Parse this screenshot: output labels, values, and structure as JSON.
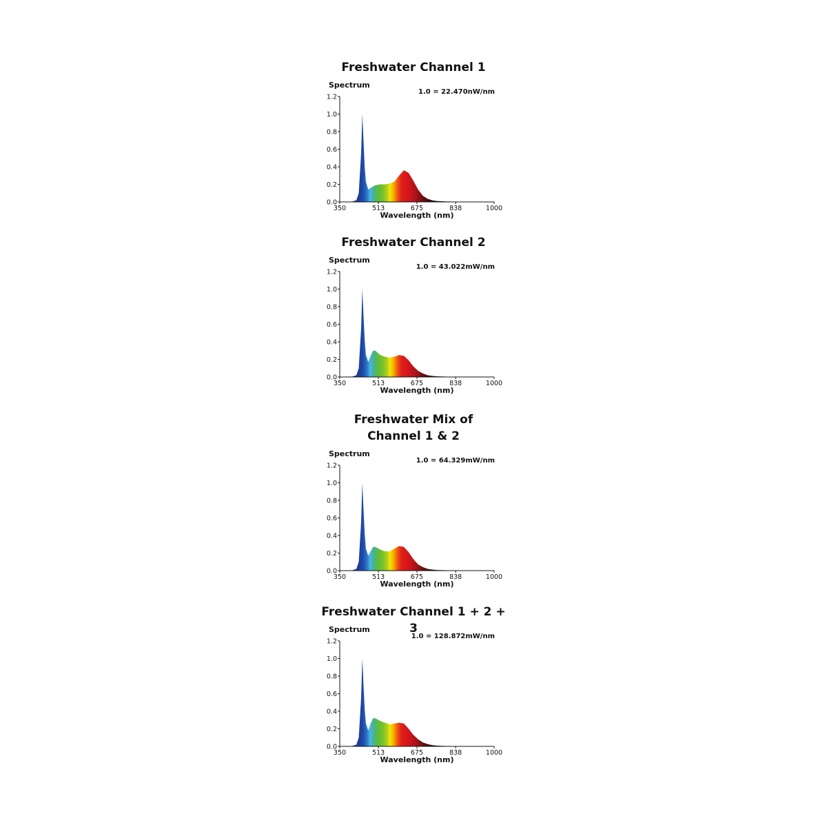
{
  "chart_data": [
    {
      "type": "area",
      "title_lines": [
        "Freshwater Channel 1"
      ],
      "ylabel": "Spectrum",
      "xlabel": "Wavelength (nm)",
      "scale_note": "1.0 = 22.470nW/nm",
      "yticks": [
        "1.2",
        "1.0",
        "0.8",
        "0.6",
        "0.4",
        "0.2",
        "0.0"
      ],
      "xticks": [
        "350",
        "513",
        "675",
        "838",
        "1000"
      ],
      "xlim": [
        350,
        1000
      ],
      "ylim": [
        0,
        1.2
      ],
      "x": [
        350,
        400,
        420,
        430,
        440,
        445,
        450,
        455,
        460,
        470,
        480,
        500,
        520,
        540,
        560,
        580,
        600,
        620,
        640,
        660,
        680,
        700,
        720,
        740,
        760,
        800,
        850,
        900,
        950,
        1000
      ],
      "y": [
        0,
        0.002,
        0.02,
        0.1,
        0.55,
        1.0,
        0.7,
        0.4,
        0.23,
        0.14,
        0.16,
        0.19,
        0.2,
        0.2,
        0.21,
        0.23,
        0.3,
        0.36,
        0.33,
        0.24,
        0.14,
        0.07,
        0.035,
        0.018,
        0.01,
        0.005,
        0.003,
        0.002,
        0.001,
        0.0005
      ]
    },
    {
      "type": "area",
      "title_lines": [
        "Freshwater Channel 2"
      ],
      "ylabel": "Spectrum",
      "xlabel": "Wavelength (nm)",
      "scale_note": "1.0 = 43.022mW/nm",
      "yticks": [
        "1.2",
        "1.0",
        "0.8",
        "0.6",
        "0.4",
        "0.2",
        "0.0"
      ],
      "xticks": [
        "350",
        "513",
        "675",
        "838",
        "1000"
      ],
      "xlim": [
        350,
        1000
      ],
      "ylim": [
        0,
        1.2
      ],
      "x": [
        350,
        400,
        420,
        430,
        440,
        445,
        450,
        455,
        460,
        470,
        480,
        490,
        500,
        520,
        540,
        560,
        580,
        600,
        620,
        640,
        660,
        680,
        700,
        720,
        740,
        760,
        800,
        850,
        900,
        1000
      ],
      "y": [
        0,
        0.002,
        0.02,
        0.1,
        0.55,
        1.0,
        0.7,
        0.42,
        0.25,
        0.17,
        0.24,
        0.3,
        0.3,
        0.25,
        0.23,
        0.22,
        0.23,
        0.25,
        0.24,
        0.19,
        0.12,
        0.07,
        0.04,
        0.02,
        0.012,
        0.007,
        0.004,
        0.002,
        0.001,
        0.0005
      ]
    },
    {
      "type": "area",
      "title_lines": [
        "Freshwater Mix of",
        "Channel 1 & 2"
      ],
      "ylabel": "Spectrum",
      "xlabel": "Wavelength (nm)",
      "scale_note": "1.0 = 64.329mW/nm",
      "yticks": [
        "1.2",
        "1.0",
        "0.8",
        "0.6",
        "0.4",
        "0.2",
        "0.0"
      ],
      "xticks": [
        "350",
        "513",
        "675",
        "838",
        "1000"
      ],
      "xlim": [
        350,
        1000
      ],
      "ylim": [
        0,
        1.2
      ],
      "x": [
        350,
        400,
        420,
        430,
        440,
        445,
        450,
        455,
        460,
        470,
        480,
        490,
        500,
        520,
        540,
        560,
        580,
        600,
        620,
        640,
        660,
        680,
        700,
        720,
        740,
        760,
        800,
        850,
        900,
        1000
      ],
      "y": [
        0,
        0.002,
        0.02,
        0.1,
        0.55,
        1.0,
        0.7,
        0.42,
        0.25,
        0.17,
        0.22,
        0.27,
        0.27,
        0.24,
        0.22,
        0.22,
        0.25,
        0.28,
        0.27,
        0.21,
        0.13,
        0.07,
        0.04,
        0.02,
        0.012,
        0.007,
        0.004,
        0.002,
        0.001,
        0.0005
      ]
    },
    {
      "type": "area",
      "title_lines": [
        "Freshwater Channel 1 + 2 + 3"
      ],
      "ylabel": "Spectrum",
      "xlabel": "Wavelength (nm)",
      "scale_note": "1.0 = 128.872mW/nm",
      "yticks": [
        "1.2",
        "1.0",
        "0.8",
        "0.6",
        "0.4",
        "0.2",
        "0.0"
      ],
      "xticks": [
        "350",
        "513",
        "675",
        "838",
        "1000"
      ],
      "xlim": [
        350,
        1000
      ],
      "ylim": [
        0,
        1.2
      ],
      "x": [
        350,
        400,
        420,
        430,
        440,
        445,
        450,
        455,
        460,
        470,
        480,
        490,
        500,
        520,
        540,
        560,
        580,
        600,
        620,
        640,
        660,
        680,
        700,
        720,
        740,
        760,
        800,
        850,
        900,
        1000
      ],
      "y": [
        0,
        0.002,
        0.02,
        0.1,
        0.55,
        1.0,
        0.7,
        0.42,
        0.26,
        0.18,
        0.26,
        0.32,
        0.32,
        0.29,
        0.27,
        0.25,
        0.26,
        0.27,
        0.26,
        0.2,
        0.13,
        0.08,
        0.045,
        0.025,
        0.014,
        0.008,
        0.004,
        0.002,
        0.001,
        0.0005
      ]
    }
  ]
}
